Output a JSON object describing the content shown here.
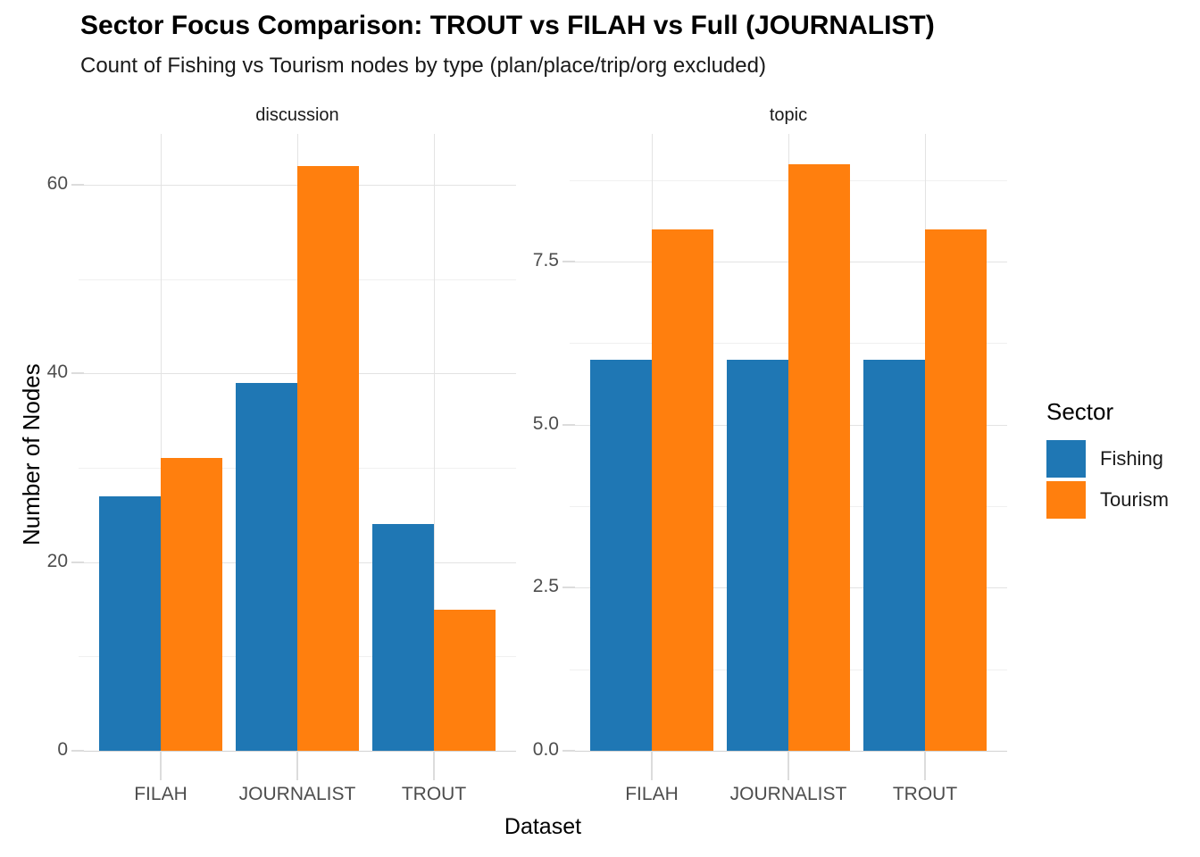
{
  "chart_data": {
    "type": "bar",
    "title": "Sector Focus Comparison: TROUT vs FILAH vs Full (JOURNALIST)",
    "subtitle": "Count of Fishing vs Tourism nodes by type (plan/place/trip/org excluded)",
    "xlabel": "Dataset",
    "ylabel": "Number of Nodes",
    "categories": [
      "FILAH",
      "JOURNALIST",
      "TROUT"
    ],
    "legend": {
      "title": "Sector",
      "position": "right",
      "items": [
        {
          "label": "Fishing",
          "color": "#1F77B4"
        },
        {
          "label": "Tourism",
          "color": "#FF7F0E"
        }
      ]
    },
    "facets": [
      {
        "label": "discussion",
        "series": [
          {
            "name": "Fishing",
            "values": [
              27,
              39,
              24
            ]
          },
          {
            "name": "Tourism",
            "values": [
              31,
              62,
              15
            ]
          }
        ],
        "y_ticks": [
          {
            "value": 0,
            "label": "0"
          },
          {
            "value": 20,
            "label": "20"
          },
          {
            "value": 40,
            "label": "40"
          },
          {
            "value": 60,
            "label": "60"
          }
        ],
        "y_minor": [
          10,
          30,
          50
        ],
        "ylim": [
          0,
          65.4
        ]
      },
      {
        "label": "topic",
        "series": [
          {
            "name": "Fishing",
            "values": [
              6,
              6,
              6
            ]
          },
          {
            "name": "Tourism",
            "values": [
              8,
              9,
              8
            ]
          }
        ],
        "y_ticks": [
          {
            "value": 0,
            "label": "0.0"
          },
          {
            "value": 2.5,
            "label": "2.5"
          },
          {
            "value": 5,
            "label": "5.0"
          },
          {
            "value": 7.5,
            "label": "7.5"
          }
        ],
        "y_minor": [
          1.25,
          3.75,
          6.25,
          8.75
        ],
        "ylim": [
          0,
          9.46
        ]
      }
    ],
    "grid": true,
    "background": "#FFFFFF",
    "style_colors": {
      "grid_major": "#E3E3E3",
      "grid_minor": "#F0F0F0",
      "axis_line": "#D2D2D2",
      "tick_mark": "#DCDCDC",
      "tick_label": "#4D4D4D"
    }
  }
}
